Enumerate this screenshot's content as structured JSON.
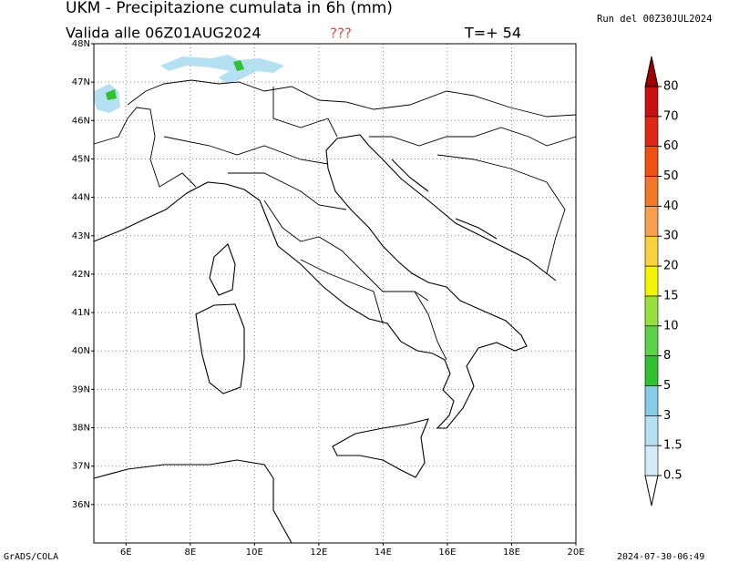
{
  "header": {
    "title": "UKM - Precipitazione cumulata in 6h (mm)",
    "valid": "Valida alle 06Z01AUG2024",
    "flag": "???",
    "step": "T=+ 54",
    "run": "Run del 00Z30JUL2024"
  },
  "map": {
    "lonlim": [
      5,
      20
    ],
    "latlim": [
      35,
      48
    ],
    "lat_labels": [
      {
        "value": 36,
        "label": "36N"
      },
      {
        "value": 37,
        "label": "37N"
      },
      {
        "value": 38,
        "label": "38N"
      },
      {
        "value": 39,
        "label": "39N"
      },
      {
        "value": 40,
        "label": "40N"
      },
      {
        "value": 41,
        "label": "41N"
      },
      {
        "value": 42,
        "label": "42N"
      },
      {
        "value": 43,
        "label": "43N"
      },
      {
        "value": 44,
        "label": "44N"
      },
      {
        "value": 45,
        "label": "45N"
      },
      {
        "value": 46,
        "label": "46N"
      },
      {
        "value": 47,
        "label": "47N"
      },
      {
        "value": 48,
        "label": "48N"
      }
    ],
    "lon_labels": [
      {
        "value": 6,
        "label": "6E"
      },
      {
        "value": 8,
        "label": "8E"
      },
      {
        "value": 10,
        "label": "10E"
      },
      {
        "value": 12,
        "label": "12E"
      },
      {
        "value": 14,
        "label": "14E"
      },
      {
        "value": 16,
        "label": "16E"
      },
      {
        "value": 18,
        "label": "18E"
      },
      {
        "value": 20,
        "label": "20E"
      }
    ]
  },
  "colorbar": {
    "levels": [
      0.5,
      1.5,
      3,
      5,
      8,
      10,
      15,
      20,
      30,
      40,
      50,
      60,
      70,
      80
    ],
    "colors": [
      "#ffffff",
      "#d4ecfa",
      "#b4e0f2",
      "#86cce6",
      "#30c030",
      "#5cd24a",
      "#98e040",
      "#f4f400",
      "#f8d040",
      "#f8a050",
      "#f07828",
      "#f05010",
      "#e02818",
      "#c81010",
      "#a00000"
    ]
  },
  "footer": {
    "left": "GrADS/COLA",
    "right": "2024-07-30-06:49"
  }
}
